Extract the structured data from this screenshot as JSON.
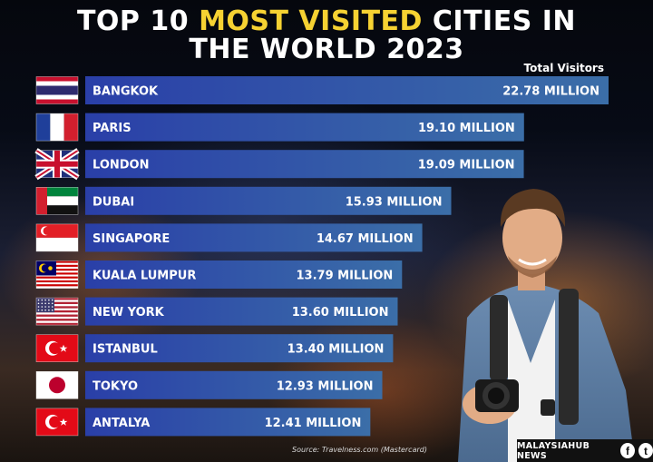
{
  "title": {
    "part1": "TOP 10 ",
    "highlight": "MOST VISITED",
    "part2": " CITIES IN",
    "line2": "THE WORLD 2023"
  },
  "legend_title": "Total Visitors",
  "source": "Source: Travelness.com (Mastercard)",
  "brand": {
    "name": "MALAYSIAHUB NEWS",
    "icon1": "f",
    "icon2": "t"
  },
  "colors": {
    "title_highlight": "#f6d232",
    "bar_left": "#2a3fa8",
    "bar_right": "#3b6ea8"
  },
  "chart_data": {
    "type": "bar",
    "orientation": "horizontal",
    "categories": [
      "BANGKOK",
      "PARIS",
      "LONDON",
      "DUBAI",
      "SINGAPORE",
      "KUALA LUMPUR",
      "NEW YORK",
      "ISTANBUL",
      "TOKYO",
      "ANTALYA"
    ],
    "values": [
      22.78,
      19.1,
      19.09,
      15.93,
      14.67,
      13.79,
      13.6,
      13.4,
      12.93,
      12.41
    ],
    "value_labels": [
      "22.78 MILLION",
      "19.10 MILLION",
      "19.09 MILLION",
      "15.93 MILLION",
      "14.67 MILLION",
      "13.79 MILLION",
      "13.60 MILLION",
      "13.40 MILLION",
      "12.93 MILLION",
      "12.41 MILLION"
    ],
    "flags": [
      "thailand-flag-icon",
      "france-flag-icon",
      "uk-flag-icon",
      "uae-flag-icon",
      "singapore-flag-icon",
      "malaysia-flag-icon",
      "usa-flag-icon",
      "turkey-flag-icon",
      "japan-flag-icon",
      "turkey-flag-icon"
    ],
    "unit": "MILLION",
    "legend_position": "top-right",
    "grid": false
  }
}
